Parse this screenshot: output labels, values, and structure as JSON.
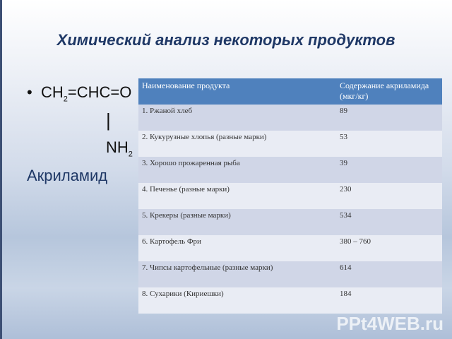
{
  "title": "Химический анализ некоторых продуктов",
  "formula": {
    "bullet": "•",
    "part1": "CH",
    "sub1": "2",
    "part2": "=CHC=O",
    "bond": "|",
    "nh": "NH",
    "sub2": "2"
  },
  "compound_name": "Акриламид",
  "table": {
    "headers": [
      "Наименование продукта",
      "Содержание акриламида (мкг/кг)"
    ],
    "rows": [
      [
        "1. Ржаной хлеб",
        "89"
      ],
      [
        "2. Кукурузные хлопья (разные марки)",
        "53"
      ],
      [
        "3. Хорошо прожаренная рыба",
        "39"
      ],
      [
        "4. Печенье (разные марки)",
        "230"
      ],
      [
        "5. Крекеры (разные марки)",
        "534"
      ],
      [
        "6. Картофель Фри",
        "380 – 760"
      ],
      [
        "7. Чипсы картофельные (разные марки)",
        "614"
      ],
      [
        "8. Сухарики (Кириешки)",
        "184"
      ]
    ]
  },
  "watermark": "PPt4WEB.ru"
}
